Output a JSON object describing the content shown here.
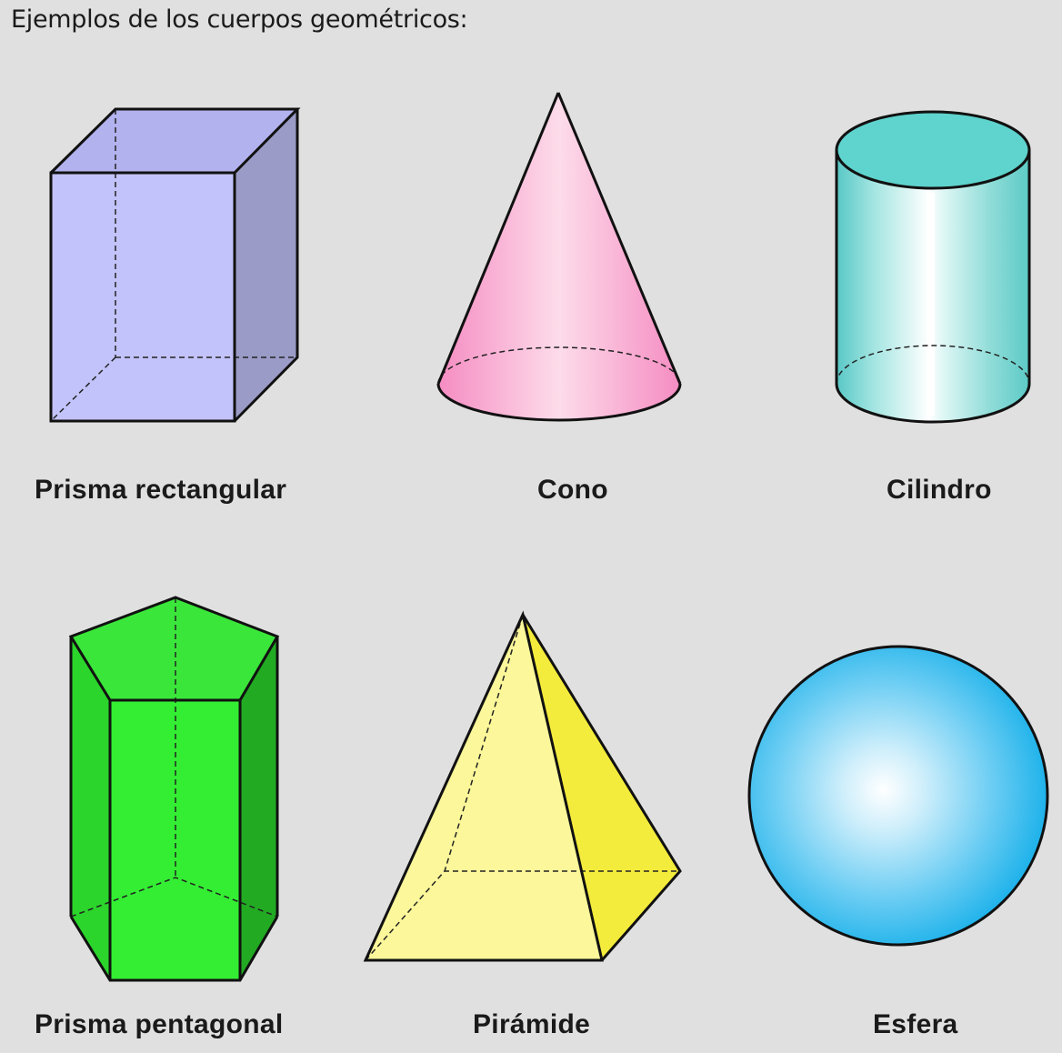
{
  "title": "Ejemplos de los cuerpos geométricos:",
  "shapes": [
    {
      "label": "Prisma rectangular",
      "color": "#c3c3fb",
      "icon": "rectangular-prism-icon"
    },
    {
      "label": "Cono",
      "color": "#f9b4d4",
      "icon": "cone-icon"
    },
    {
      "label": "Cilindro",
      "color": "#5fd3cd",
      "icon": "cylinder-icon"
    },
    {
      "label": "Prisma pentagonal",
      "color": "#33ee33",
      "icon": "pentagonal-prism-icon"
    },
    {
      "label": "Pirámide",
      "color": "#fbf58a",
      "icon": "pyramid-icon"
    },
    {
      "label": "Esfera",
      "color": "#28b4ea",
      "icon": "sphere-icon"
    }
  ]
}
